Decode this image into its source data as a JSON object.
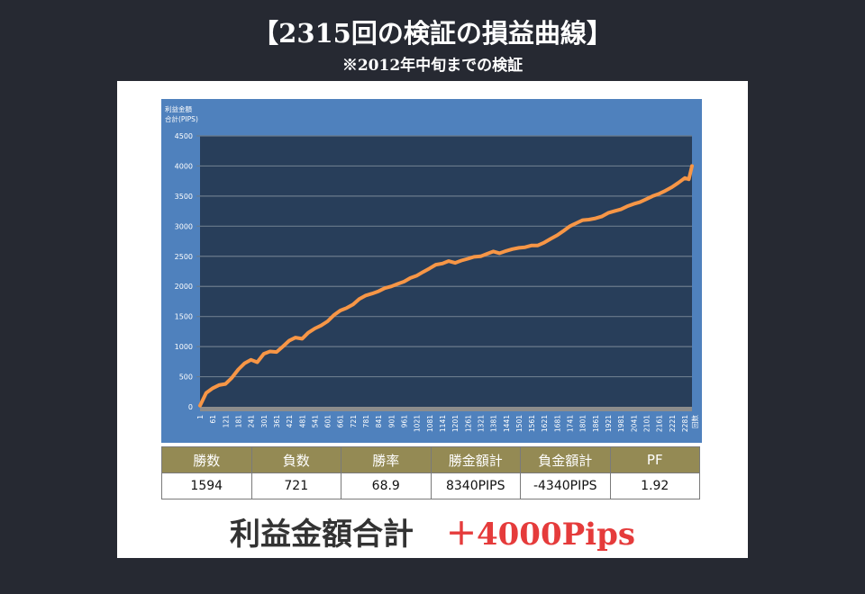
{
  "header": {
    "title": "【2315回の検証の損益曲線】",
    "subtitle": "※2012年中旬までの検証"
  },
  "colors": {
    "page_bg": "#262932",
    "panel_bg": "#ffffff",
    "chart_bg_outer": "#4f81bd",
    "plot_bg": "#283e5a",
    "line": "#f79646",
    "gridline": "#6b7b8c",
    "table_header_bg": "#948a54",
    "total_value": "#e53b3b"
  },
  "chart_data": {
    "type": "line",
    "title": "",
    "ylabel": "利益金額合計(PIPS)",
    "ylabel_lines": [
      "利益金額",
      "合計(PIPS)"
    ],
    "xlabel": "回数",
    "ylim": [
      0,
      4500
    ],
    "yticks": [
      0,
      500,
      1000,
      1500,
      2000,
      2500,
      3000,
      3500,
      4000,
      4500
    ],
    "xlim": [
      1,
      2315
    ],
    "xticks": [
      1,
      61,
      121,
      181,
      241,
      301,
      361,
      421,
      481,
      541,
      601,
      661,
      721,
      781,
      841,
      901,
      961,
      1021,
      1081,
      1141,
      1201,
      1261,
      1321,
      1381,
      1441,
      1501,
      1561,
      1621,
      1681,
      1741,
      1801,
      1861,
      1921,
      1981,
      2041,
      2101,
      2161,
      2221,
      2281
    ],
    "grid": true,
    "legend": false,
    "series": [
      {
        "name": "利益金額合計",
        "x": [
          1,
          30,
          61,
          90,
          121,
          150,
          181,
          210,
          241,
          270,
          301,
          330,
          361,
          390,
          421,
          450,
          481,
          510,
          541,
          570,
          601,
          630,
          661,
          690,
          721,
          750,
          781,
          810,
          841,
          870,
          901,
          930,
          961,
          990,
          1021,
          1050,
          1081,
          1110,
          1141,
          1170,
          1201,
          1230,
          1261,
          1290,
          1321,
          1350,
          1381,
          1410,
          1441,
          1470,
          1501,
          1530,
          1561,
          1590,
          1621,
          1650,
          1681,
          1710,
          1741,
          1770,
          1801,
          1830,
          1861,
          1890,
          1921,
          1950,
          1981,
          2010,
          2041,
          2070,
          2101,
          2130,
          2161,
          2190,
          2221,
          2250,
          2281,
          2300,
          2315
        ],
        "values": [
          20,
          230,
          310,
          360,
          380,
          480,
          620,
          720,
          780,
          740,
          880,
          920,
          910,
          1000,
          1100,
          1150,
          1130,
          1230,
          1300,
          1350,
          1420,
          1520,
          1600,
          1640,
          1700,
          1790,
          1850,
          1880,
          1920,
          1970,
          2000,
          2040,
          2080,
          2140,
          2180,
          2240,
          2300,
          2360,
          2380,
          2420,
          2390,
          2430,
          2460,
          2490,
          2500,
          2540,
          2580,
          2550,
          2590,
          2620,
          2640,
          2650,
          2680,
          2680,
          2730,
          2790,
          2850,
          2920,
          3000,
          3050,
          3100,
          3110,
          3130,
          3160,
          3220,
          3250,
          3280,
          3330,
          3370,
          3400,
          3450,
          3500,
          3540,
          3590,
          3650,
          3720,
          3800,
          3780,
          4000
        ]
      }
    ]
  },
  "stats_table": {
    "headers": [
      "勝数",
      "負数",
      "勝率",
      "勝金額計",
      "負金額計",
      "PF"
    ],
    "values": [
      "1594",
      "721",
      "68.9",
      "8340PIPS",
      "-4340PIPS",
      "1.92"
    ]
  },
  "total": {
    "label": "利益金額合計",
    "value": "＋4000Pips"
  }
}
